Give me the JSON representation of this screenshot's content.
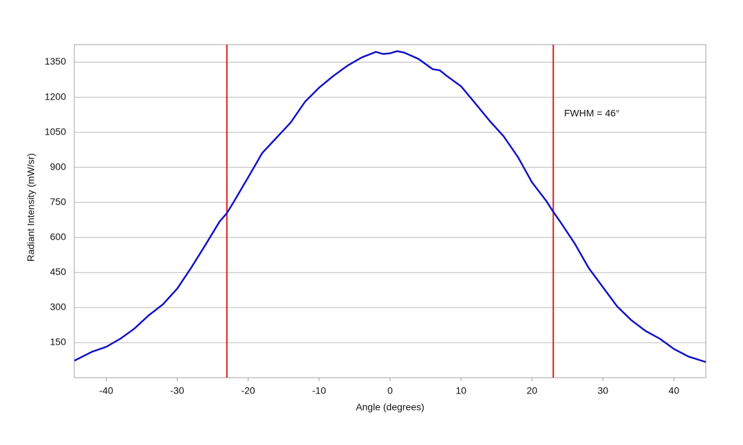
{
  "chart_data": {
    "type": "line",
    "x_label": "Angle (degrees)",
    "y_label": "Radiant Intensity (mW/sr)",
    "annotation": "FWHM = 46°",
    "vlines": [
      -23,
      23
    ],
    "vline_color": "#e0191b",
    "x": [
      -44.5,
      -42,
      -40,
      -38,
      -36,
      -34,
      -32,
      -30,
      -28,
      -26,
      -24,
      -23,
      -22,
      -20,
      -18,
      -16,
      -14,
      -12,
      -10,
      -8,
      -6,
      -4,
      -2,
      -1,
      0,
      1,
      2,
      4,
      6,
      7,
      8,
      10,
      12,
      14,
      16,
      18,
      20,
      22,
      23,
      24,
      26,
      28,
      30,
      32,
      34,
      36,
      38,
      40,
      42,
      44.5
    ],
    "series": [
      {
        "name": "Radiant Intensity",
        "color": "#1010c8",
        "values": [
          73,
          111,
          132,
          167,
          211,
          267,
          314,
          381,
          472,
          569,
          669,
          704,
          754,
          857,
          962,
          1027,
          1092,
          1180,
          1241,
          1291,
          1335,
          1370,
          1394,
          1385,
          1388,
          1397,
          1391,
          1364,
          1320,
          1315,
          1291,
          1247,
          1174,
          1100,
          1033,
          945,
          836,
          757,
          710,
          666,
          575,
          469,
          387,
          305,
          246,
          200,
          167,
          123,
          91,
          67
        ]
      }
    ],
    "xlim": [
      -44.5,
      44.5
    ],
    "xticks": [
      -40,
      -30,
      -20,
      -10,
      0,
      10,
      20,
      30,
      40
    ],
    "ylim": [
      0,
      1425
    ],
    "yticks": [
      150,
      300,
      450,
      600,
      750,
      900,
      1050,
      1200,
      1350
    ],
    "grid": true
  }
}
